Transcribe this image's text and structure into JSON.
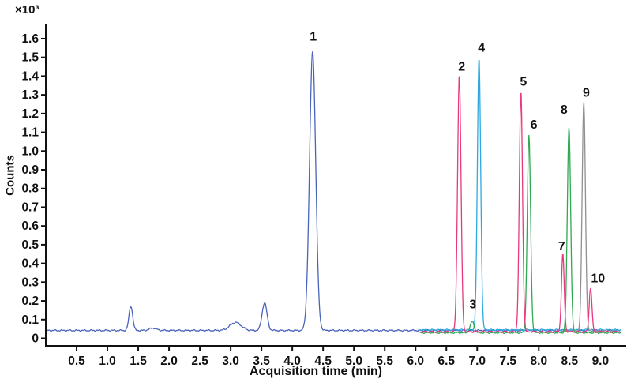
{
  "chart_data": {
    "type": "line",
    "title": "",
    "xlabel": "Acquisition time (min)",
    "ylabel": "Counts",
    "y_unit_label": "×10³",
    "xlim": [
      0,
      9.38
    ],
    "ylim": [
      -0.04,
      1.68
    ],
    "x_ticks": [
      0.5,
      1.0,
      1.5,
      2.0,
      2.5,
      3.0,
      3.5,
      4.0,
      4.5,
      5.0,
      5.5,
      6.0,
      6.5,
      7.0,
      7.5,
      8.0,
      8.5,
      9.0
    ],
    "y_ticks": [
      0,
      0.1,
      0.2,
      0.3,
      0.4,
      0.5,
      0.6,
      0.7,
      0.8,
      0.9,
      1.0,
      1.1,
      1.2,
      1.3,
      1.4,
      1.5,
      1.6
    ],
    "grid": false,
    "legend": "none",
    "axis_color": "#111111",
    "series": [
      {
        "name": "trace-blue",
        "color": "#4a63bb",
        "range": [
          0.02,
          9.32
        ],
        "baseline": 0.042,
        "peaks": [
          {
            "rt": 1.38,
            "height": 0.13,
            "sigma": 0.03
          },
          {
            "rt": 1.74,
            "height": 0.013,
            "sigma": 0.055
          },
          {
            "rt": 3.08,
            "height": 0.043,
            "sigma": 0.09
          },
          {
            "rt": 3.55,
            "height": 0.148,
            "sigma": 0.04
          },
          {
            "rt": 4.33,
            "height": 1.49,
            "sigma": 0.05
          }
        ]
      },
      {
        "name": "trace-cyan",
        "color": "#2ba9e1",
        "range": [
          6.05,
          9.33
        ],
        "baseline": 0.045,
        "peaks": [
          {
            "rt": 7.03,
            "height": 1.455,
            "sigma": 0.027
          }
        ]
      },
      {
        "name": "trace-gray",
        "color": "#8f9091",
        "range": [
          8.38,
          9.28
        ],
        "baseline": 0.038,
        "peaks": [
          {
            "rt": 8.73,
            "height": 1.222,
            "sigma": 0.027
          }
        ]
      },
      {
        "name": "trace-green",
        "color": "#2fa952",
        "range": [
          6.08,
          9.34
        ],
        "baseline": 0.03,
        "peaks": [
          {
            "rt": 6.92,
            "height": 0.06,
            "sigma": 0.032
          },
          {
            "rt": 7.84,
            "height": 1.05,
            "sigma": 0.027
          },
          {
            "rt": 8.49,
            "height": 1.1,
            "sigma": 0.027
          }
        ]
      },
      {
        "name": "trace-pink",
        "color": "#e6397e",
        "range": [
          6.05,
          9.34
        ],
        "baseline": 0.035,
        "peaks": [
          {
            "rt": 6.71,
            "height": 1.375,
            "sigma": 0.028
          },
          {
            "rt": 7.71,
            "height": 1.285,
            "sigma": 0.026
          },
          {
            "rt": 8.39,
            "height": 0.415,
            "sigma": 0.022
          },
          {
            "rt": 8.84,
            "height": 0.235,
            "sigma": 0.022
          }
        ]
      }
    ],
    "peak_labels": [
      {
        "label": "1",
        "x": 4.34,
        "y": 1.59
      },
      {
        "label": "2",
        "x": 6.75,
        "y": 1.43
      },
      {
        "label": "3",
        "x": 6.93,
        "y": 0.16
      },
      {
        "label": "4",
        "x": 7.07,
        "y": 1.53
      },
      {
        "label": "5",
        "x": 7.75,
        "y": 1.35
      },
      {
        "label": "6",
        "x": 7.92,
        "y": 1.12
      },
      {
        "label": "7",
        "x": 8.37,
        "y": 0.47
      },
      {
        "label": "8",
        "x": 8.41,
        "y": 1.2
      },
      {
        "label": "9",
        "x": 8.77,
        "y": 1.29
      },
      {
        "label": "10",
        "x": 8.96,
        "y": 0.3
      }
    ]
  }
}
